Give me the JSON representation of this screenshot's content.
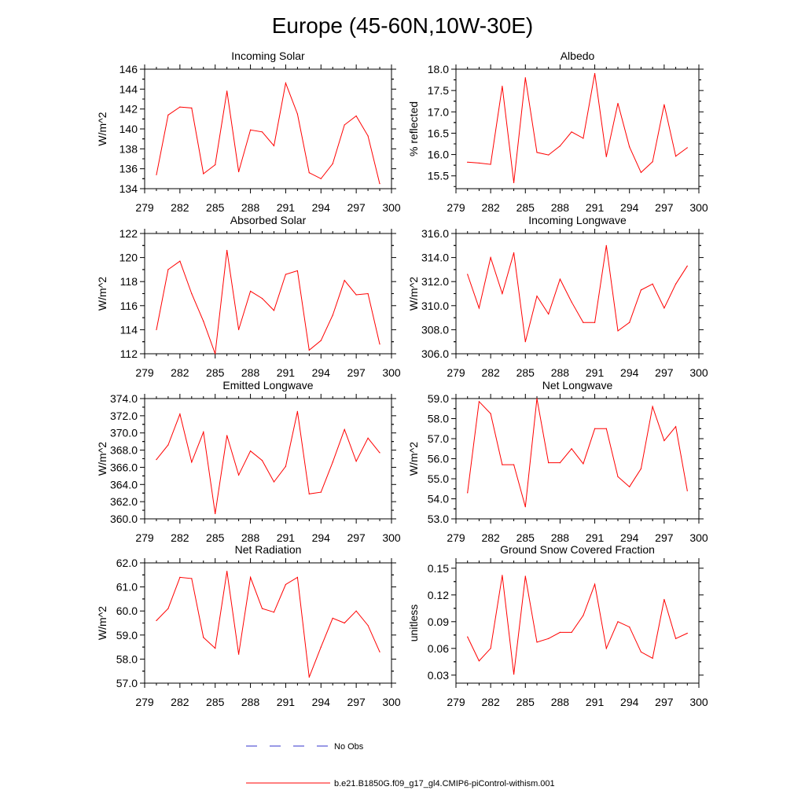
{
  "page_title": "Europe (45-60N,10W-30E)",
  "colors": {
    "model_line": "#ff0000",
    "obs_line": "#3333cc",
    "axis": "#000000"
  },
  "legend": {
    "obs_label": "No Obs",
    "model_label": "b.e21.B1850G.f09_g17_gl4.CMIP6-piControl-withism.001"
  },
  "chart_data": [
    {
      "type": "line",
      "title": "Incoming Solar",
      "xlabel": "",
      "ylabel": "W/m^2",
      "xlim": [
        279,
        300
      ],
      "ylim": [
        134,
        146
      ],
      "xticks": [
        279,
        282,
        285,
        288,
        291,
        294,
        297,
        300
      ],
      "xtick_labels": [
        "279",
        "282",
        "285",
        "288",
        "291",
        "294",
        "297",
        "300"
      ],
      "yticks": [
        134,
        136,
        138,
        140,
        142,
        144,
        146
      ],
      "ytick_labels": [
        "134",
        "136",
        "138",
        "140",
        "142",
        "144",
        "146"
      ],
      "x": [
        280,
        281,
        282,
        283,
        284,
        285,
        286,
        287,
        288,
        289,
        290,
        291,
        292,
        293,
        294,
        295,
        296,
        297,
        298,
        299
      ],
      "series": [
        {
          "name": "b.e21.B1850G.f09_g17_gl4.CMIP6-piControl-withism.001",
          "values": [
            135.4,
            141.4,
            142.2,
            142.1,
            135.5,
            136.4,
            143.8,
            135.7,
            139.9,
            139.7,
            138.3,
            144.6,
            141.5,
            135.6,
            135.0,
            136.5,
            140.4,
            141.3,
            139.3,
            134.5
          ]
        }
      ]
    },
    {
      "type": "line",
      "title": "Albedo",
      "xlabel": "",
      "ylabel": "% reflected",
      "xlim": [
        279,
        300
      ],
      "ylim": [
        15.2,
        18.0
      ],
      "xticks": [
        279,
        282,
        285,
        288,
        291,
        294,
        297,
        300
      ],
      "xtick_labels": [
        "279",
        "282",
        "285",
        "288",
        "291",
        "294",
        "297",
        "300"
      ],
      "yticks": [
        15.5,
        16.0,
        16.5,
        17.0,
        17.5,
        18.0
      ],
      "ytick_labels": [
        "15.5",
        "16.0",
        "16.5",
        "17.0",
        "17.5",
        "18.0"
      ],
      "x": [
        280,
        281,
        282,
        283,
        284,
        285,
        286,
        287,
        288,
        289,
        290,
        291,
        292,
        293,
        294,
        295,
        296,
        297,
        298,
        299
      ],
      "series": [
        {
          "name": "b.e21.B1850G.f09_g17_gl4.CMIP6-piControl-withism.001",
          "values": [
            15.82,
            15.8,
            15.77,
            17.6,
            15.34,
            17.8,
            16.05,
            15.99,
            16.2,
            16.53,
            16.38,
            17.9,
            15.95,
            17.2,
            16.18,
            15.58,
            15.83,
            17.17,
            15.96,
            16.16
          ]
        }
      ]
    },
    {
      "type": "line",
      "title": "Absorbed Solar",
      "xlabel": "",
      "ylabel": "W/m^2",
      "xlim": [
        279,
        300
      ],
      "ylim": [
        112,
        122
      ],
      "xticks": [
        279,
        282,
        285,
        288,
        291,
        294,
        297,
        300
      ],
      "xtick_labels": [
        "279",
        "282",
        "285",
        "288",
        "291",
        "294",
        "297",
        "300"
      ],
      "yticks": [
        112,
        114,
        116,
        118,
        120,
        122
      ],
      "ytick_labels": [
        "112",
        "114",
        "116",
        "118",
        "120",
        "122"
      ],
      "x": [
        280,
        281,
        282,
        283,
        284,
        285,
        286,
        287,
        288,
        289,
        290,
        291,
        292,
        293,
        294,
        295,
        296,
        297,
        298,
        299
      ],
      "series": [
        {
          "name": "b.e21.B1850G.f09_g17_gl4.CMIP6-piControl-withism.001",
          "values": [
            114.0,
            119.0,
            119.7,
            117.0,
            114.7,
            112.0,
            120.6,
            114.0,
            117.2,
            116.6,
            115.6,
            118.6,
            118.9,
            112.3,
            113.1,
            115.2,
            118.1,
            116.9,
            117.0,
            112.8
          ]
        }
      ]
    },
    {
      "type": "line",
      "title": "Incoming Longwave",
      "xlabel": "",
      "ylabel": "W/m^2",
      "xlim": [
        279,
        300
      ],
      "ylim": [
        306,
        316
      ],
      "xticks": [
        279,
        282,
        285,
        288,
        291,
        294,
        297,
        300
      ],
      "xtick_labels": [
        "279",
        "282",
        "285",
        "288",
        "291",
        "294",
        "297",
        "300"
      ],
      "yticks": [
        306,
        308,
        310,
        312,
        314,
        316
      ],
      "ytick_labels": [
        "306.0",
        "308.0",
        "310.0",
        "312.0",
        "314.0",
        "316.0"
      ],
      "x": [
        280,
        281,
        282,
        283,
        284,
        285,
        286,
        287,
        288,
        289,
        290,
        291,
        292,
        293,
        294,
        295,
        296,
        297,
        298,
        299
      ],
      "series": [
        {
          "name": "b.e21.B1850G.f09_g17_gl4.CMIP6-piControl-withism.001",
          "values": [
            312.6,
            309.8,
            314.0,
            311.0,
            314.4,
            307.0,
            310.8,
            309.3,
            312.2,
            310.3,
            308.6,
            308.6,
            315.0,
            307.9,
            308.6,
            311.3,
            311.8,
            309.8,
            311.8,
            313.3
          ]
        }
      ]
    },
    {
      "type": "line",
      "title": "Emitted Longwave",
      "xlabel": "",
      "ylabel": "W/m^2",
      "xlim": [
        279,
        300
      ],
      "ylim": [
        360,
        374
      ],
      "xticks": [
        279,
        282,
        285,
        288,
        291,
        294,
        297,
        300
      ],
      "xtick_labels": [
        "279",
        "282",
        "285",
        "288",
        "291",
        "294",
        "297",
        "300"
      ],
      "yticks": [
        360,
        362,
        364,
        366,
        368,
        370,
        372,
        374
      ],
      "ytick_labels": [
        "360.0",
        "362.0",
        "364.0",
        "366.0",
        "368.0",
        "370.0",
        "372.0",
        "374.0"
      ],
      "x": [
        280,
        281,
        282,
        283,
        284,
        285,
        286,
        287,
        288,
        289,
        290,
        291,
        292,
        293,
        294,
        295,
        296,
        297,
        298,
        299
      ],
      "series": [
        {
          "name": "b.e21.B1850G.f09_g17_gl4.CMIP6-piControl-withism.001",
          "values": [
            366.9,
            368.6,
            372.2,
            366.6,
            370.1,
            360.6,
            369.7,
            365.1,
            367.9,
            366.8,
            364.3,
            366.1,
            372.5,
            362.9,
            363.1,
            366.6,
            370.4,
            366.7,
            369.4,
            367.7
          ]
        }
      ]
    },
    {
      "type": "line",
      "title": "Net Longwave",
      "xlabel": "",
      "ylabel": "W/m^2",
      "xlim": [
        279,
        300
      ],
      "ylim": [
        53,
        59
      ],
      "xticks": [
        279,
        282,
        285,
        288,
        291,
        294,
        297,
        300
      ],
      "xtick_labels": [
        "279",
        "282",
        "285",
        "288",
        "291",
        "294",
        "297",
        "300"
      ],
      "yticks": [
        53,
        54,
        55,
        56,
        57,
        58,
        59
      ],
      "ytick_labels": [
        "53.0",
        "54.0",
        "55.0",
        "56.0",
        "57.0",
        "58.0",
        "59.0"
      ],
      "x": [
        280,
        281,
        282,
        283,
        284,
        285,
        286,
        287,
        288,
        289,
        290,
        291,
        292,
        293,
        294,
        295,
        296,
        297,
        298,
        299
      ],
      "series": [
        {
          "name": "b.e21.B1850G.f09_g17_gl4.CMIP6-piControl-withism.001",
          "values": [
            54.3,
            58.85,
            58.25,
            55.7,
            55.7,
            53.6,
            59.0,
            55.8,
            55.8,
            56.5,
            55.75,
            57.5,
            57.5,
            55.1,
            54.6,
            55.5,
            58.6,
            56.9,
            57.6,
            54.4
          ]
        }
      ]
    },
    {
      "type": "line",
      "title": "Net Radiation",
      "xlabel": "",
      "ylabel": "W/m^2",
      "xlim": [
        279,
        300
      ],
      "ylim": [
        57,
        62
      ],
      "xticks": [
        279,
        282,
        285,
        288,
        291,
        294,
        297,
        300
      ],
      "xtick_labels": [
        "279",
        "282",
        "285",
        "288",
        "291",
        "294",
        "297",
        "300"
      ],
      "yticks": [
        57,
        58,
        59,
        60,
        61,
        62
      ],
      "ytick_labels": [
        "57.0",
        "58.0",
        "59.0",
        "60.0",
        "61.0",
        "62.0"
      ],
      "x": [
        280,
        281,
        282,
        283,
        284,
        285,
        286,
        287,
        288,
        289,
        290,
        291,
        292,
        293,
        294,
        295,
        296,
        297,
        298,
        299
      ],
      "series": [
        {
          "name": "b.e21.B1850G.f09_g17_gl4.CMIP6-piControl-withism.001",
          "values": [
            59.6,
            60.1,
            61.4,
            61.35,
            58.9,
            58.45,
            61.65,
            58.2,
            61.4,
            60.1,
            59.95,
            61.1,
            61.4,
            57.25,
            58.5,
            59.7,
            59.5,
            60.0,
            59.4,
            58.3
          ]
        }
      ]
    },
    {
      "type": "line",
      "title": "Ground Snow Covered Fraction",
      "xlabel": "",
      "ylabel": "unitless",
      "xlim": [
        279,
        300
      ],
      "ylim": [
        0.021,
        0.156
      ],
      "xticks": [
        279,
        282,
        285,
        288,
        291,
        294,
        297,
        300
      ],
      "xtick_labels": [
        "279",
        "282",
        "285",
        "288",
        "291",
        "294",
        "297",
        "300"
      ],
      "yticks": [
        0.03,
        0.06,
        0.09,
        0.12,
        0.15
      ],
      "ytick_labels": [
        "0.03",
        "0.06",
        "0.09",
        "0.12",
        "0.15"
      ],
      "x": [
        280,
        281,
        282,
        283,
        284,
        285,
        286,
        287,
        288,
        289,
        290,
        291,
        292,
        293,
        294,
        295,
        296,
        297,
        298,
        299
      ],
      "series": [
        {
          "name": "b.e21.B1850G.f09_g17_gl4.CMIP6-piControl-withism.001",
          "values": [
            0.073,
            0.046,
            0.06,
            0.142,
            0.031,
            0.141,
            0.067,
            0.071,
            0.078,
            0.078,
            0.097,
            0.132,
            0.06,
            0.09,
            0.084,
            0.056,
            0.049,
            0.115,
            0.071,
            0.077
          ]
        }
      ]
    }
  ]
}
